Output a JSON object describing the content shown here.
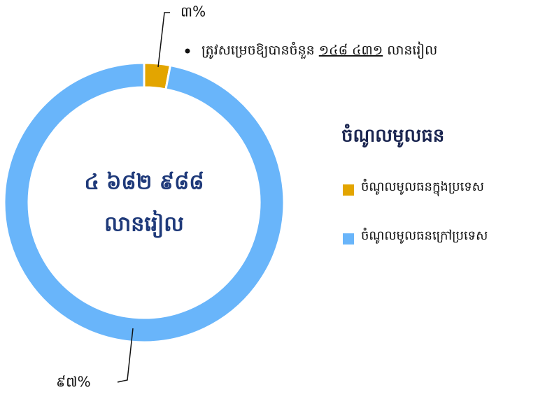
{
  "chart_data": {
    "type": "pie",
    "donut": true,
    "categories": [
      "ចំណូលមូលធនក្នុងប្រទេស",
      "ចំណូលមូលធនក្រៅប្រទេស"
    ],
    "values": [
      3,
      97
    ],
    "value_labels": [
      "៣%",
      "៩៧%"
    ],
    "colors": [
      "#e3a500",
      "#69b5fa"
    ],
    "legend_title": "ចំណូលមូលធន",
    "center_text": [
      "៤ ៦៨២ ៩៨៨",
      "លានរៀល"
    ],
    "annotation": {
      "text_before": "ត្រូវសម្រេចឱ្យបានចំនួន",
      "amount": "១៤៨ ៤៣១",
      "text_after": "លានរៀល"
    }
  }
}
